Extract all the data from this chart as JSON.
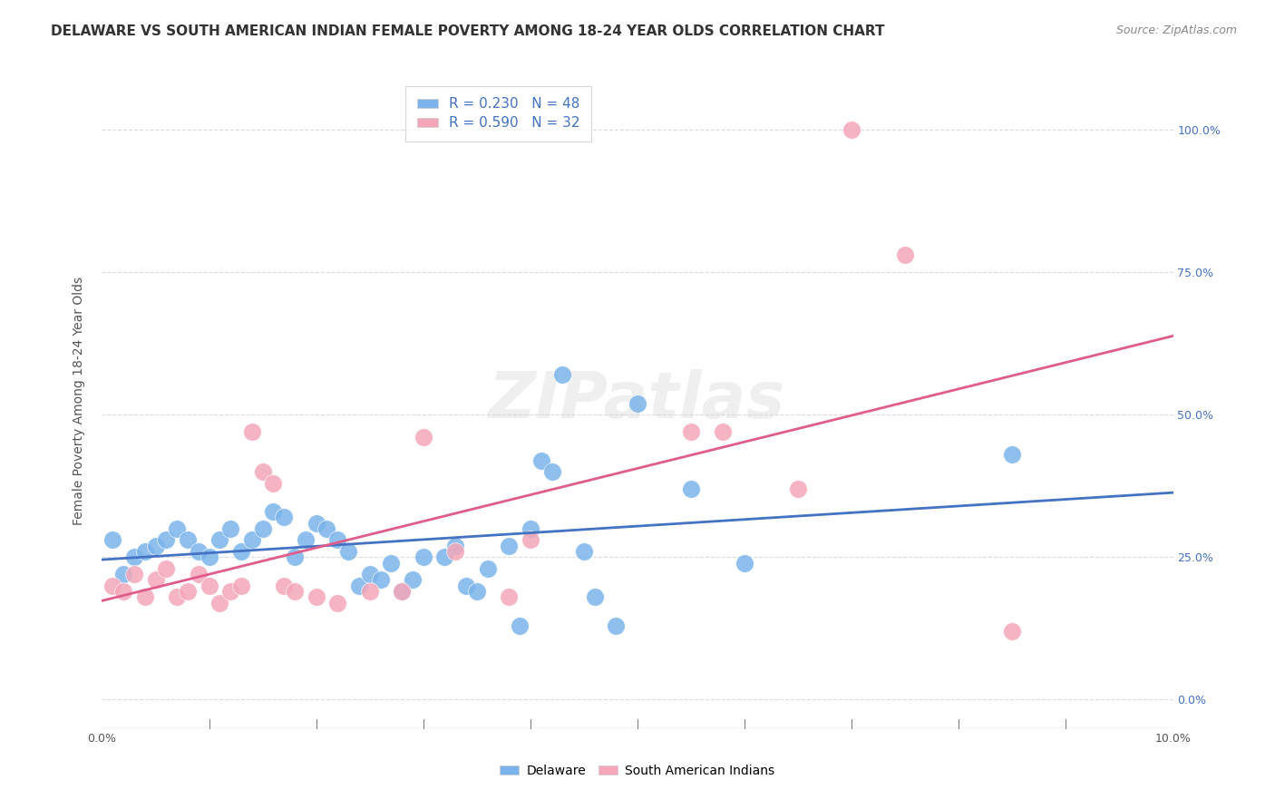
{
  "title": "DELAWARE VS SOUTH AMERICAN INDIAN FEMALE POVERTY AMONG 18-24 YEAR OLDS CORRELATION CHART",
  "source": "Source: ZipAtlas.com",
  "ylabel": "Female Poverty Among 18-24 Year Olds",
  "right_yticks": [
    0.0,
    0.25,
    0.5,
    0.75,
    1.0
  ],
  "right_yticklabels": [
    "0.0%",
    "25.0%",
    "50.0%",
    "75.0%",
    "100.0%"
  ],
  "xmin": 0.0,
  "xmax": 0.1,
  "ymin": -0.05,
  "ymax": 1.1,
  "watermark": "ZIPatlas",
  "legend_label_1": "R = 0.230   N = 48",
  "legend_label_2": "R = 0.590   N = 32",
  "delaware_color": "#7ab4ea",
  "sai_color": "#f4a7b9",
  "delaware_line_color": "#4472c4",
  "sai_line_color": "#e05c8a",
  "background_color": "#ffffff",
  "grid_color": "#cccccc",
  "title_fontsize": 11,
  "axis_fontsize": 10,
  "tick_fontsize": 9,
  "delaware_points": [
    [
      0.001,
      0.28
    ],
    [
      0.002,
      0.22
    ],
    [
      0.003,
      0.25
    ],
    [
      0.004,
      0.26
    ],
    [
      0.005,
      0.27
    ],
    [
      0.006,
      0.28
    ],
    [
      0.007,
      0.3
    ],
    [
      0.008,
      0.28
    ],
    [
      0.009,
      0.26
    ],
    [
      0.01,
      0.25
    ],
    [
      0.011,
      0.28
    ],
    [
      0.012,
      0.3
    ],
    [
      0.013,
      0.26
    ],
    [
      0.014,
      0.28
    ],
    [
      0.015,
      0.3
    ],
    [
      0.016,
      0.33
    ],
    [
      0.017,
      0.32
    ],
    [
      0.018,
      0.25
    ],
    [
      0.019,
      0.28
    ],
    [
      0.02,
      0.31
    ],
    [
      0.021,
      0.3
    ],
    [
      0.022,
      0.28
    ],
    [
      0.023,
      0.26
    ],
    [
      0.024,
      0.2
    ],
    [
      0.025,
      0.22
    ],
    [
      0.026,
      0.21
    ],
    [
      0.027,
      0.24
    ],
    [
      0.028,
      0.19
    ],
    [
      0.029,
      0.21
    ],
    [
      0.03,
      0.25
    ],
    [
      0.032,
      0.25
    ],
    [
      0.033,
      0.27
    ],
    [
      0.034,
      0.2
    ],
    [
      0.035,
      0.19
    ],
    [
      0.036,
      0.23
    ],
    [
      0.038,
      0.27
    ],
    [
      0.039,
      0.13
    ],
    [
      0.04,
      0.3
    ],
    [
      0.041,
      0.42
    ],
    [
      0.042,
      0.4
    ],
    [
      0.043,
      0.57
    ],
    [
      0.045,
      0.26
    ],
    [
      0.046,
      0.18
    ],
    [
      0.048,
      0.13
    ],
    [
      0.05,
      0.52
    ],
    [
      0.055,
      0.37
    ],
    [
      0.06,
      0.24
    ],
    [
      0.085,
      0.43
    ]
  ],
  "sai_points": [
    [
      0.001,
      0.2
    ],
    [
      0.002,
      0.19
    ],
    [
      0.003,
      0.22
    ],
    [
      0.004,
      0.18
    ],
    [
      0.005,
      0.21
    ],
    [
      0.006,
      0.23
    ],
    [
      0.007,
      0.18
    ],
    [
      0.008,
      0.19
    ],
    [
      0.009,
      0.22
    ],
    [
      0.01,
      0.2
    ],
    [
      0.011,
      0.17
    ],
    [
      0.012,
      0.19
    ],
    [
      0.013,
      0.2
    ],
    [
      0.014,
      0.47
    ],
    [
      0.015,
      0.4
    ],
    [
      0.016,
      0.38
    ],
    [
      0.017,
      0.2
    ],
    [
      0.018,
      0.19
    ],
    [
      0.02,
      0.18
    ],
    [
      0.022,
      0.17
    ],
    [
      0.025,
      0.19
    ],
    [
      0.028,
      0.19
    ],
    [
      0.03,
      0.46
    ],
    [
      0.033,
      0.26
    ],
    [
      0.038,
      0.18
    ],
    [
      0.04,
      0.28
    ],
    [
      0.055,
      0.47
    ],
    [
      0.058,
      0.47
    ],
    [
      0.065,
      0.37
    ],
    [
      0.07,
      1.0
    ],
    [
      0.075,
      0.78
    ],
    [
      0.085,
      0.12
    ]
  ]
}
